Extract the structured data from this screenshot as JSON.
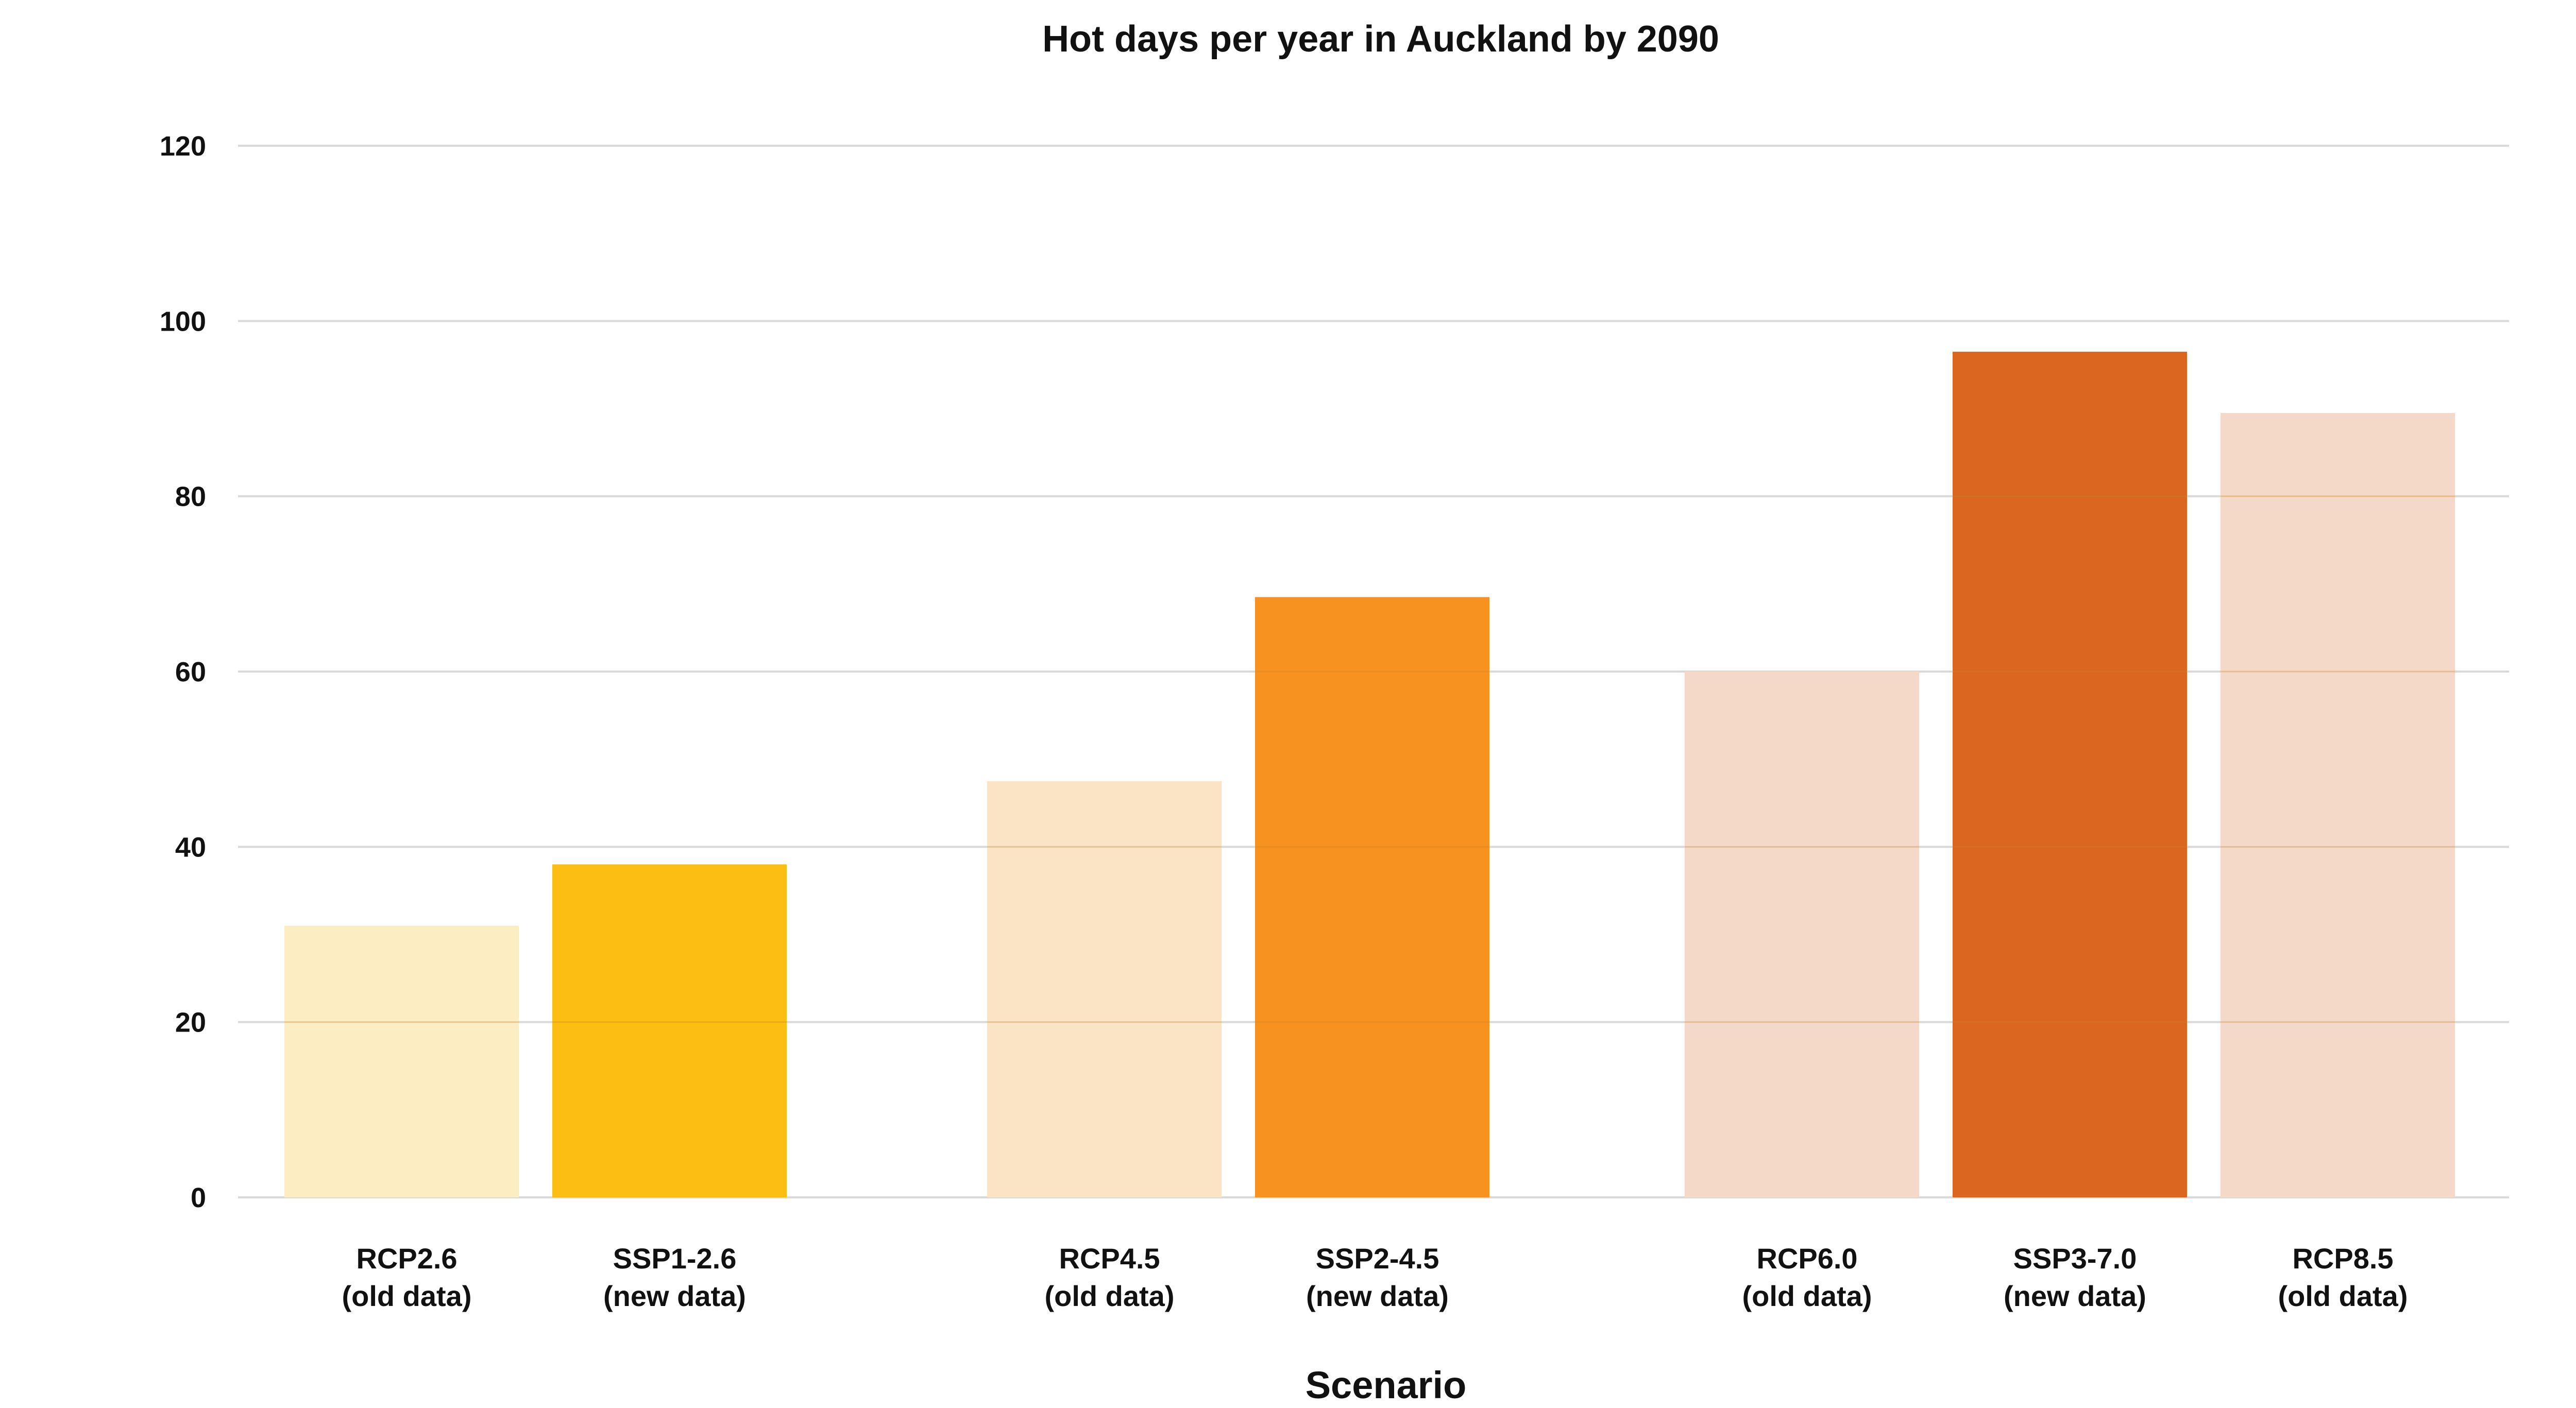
{
  "chart_data": {
    "type": "bar",
    "title": "Hot days per year in Auckland by 2090",
    "xlabel": "Scenario",
    "ylabel": "",
    "ylim": [
      0,
      120
    ],
    "yticks": [
      "0",
      "20",
      "40",
      "60",
      "80",
      "100",
      "120"
    ],
    "grid": true,
    "groups": [
      {
        "bars": [
          {
            "line1": "RCP2.6",
            "line2": "(old data)",
            "value": 31,
            "color": "#FCEDC3"
          },
          {
            "line1": "SSP1-2.6",
            "line2": "(new data)",
            "value": 38,
            "color": "#FDBE13"
          }
        ]
      },
      {
        "bars": [
          {
            "line1": "RCP4.5",
            "line2": "(old data)",
            "value": 47.5,
            "color": "#FBE3C6"
          },
          {
            "line1": "SSP2-4.5",
            "line2": "(new data)",
            "value": 68.5,
            "color": "#F79221"
          }
        ]
      },
      {
        "bars": [
          {
            "line1": "RCP6.0",
            "line2": "(old data)",
            "value": 60,
            "color": "#F5D9C8"
          },
          {
            "line1": "SSP3-7.0",
            "line2": "(new data)",
            "value": 96.5,
            "color": "#DA6620"
          },
          {
            "line1": "RCP8.5",
            "line2": "(old data)",
            "value": 89.5,
            "color": "#F5D9C8"
          }
        ]
      }
    ]
  }
}
